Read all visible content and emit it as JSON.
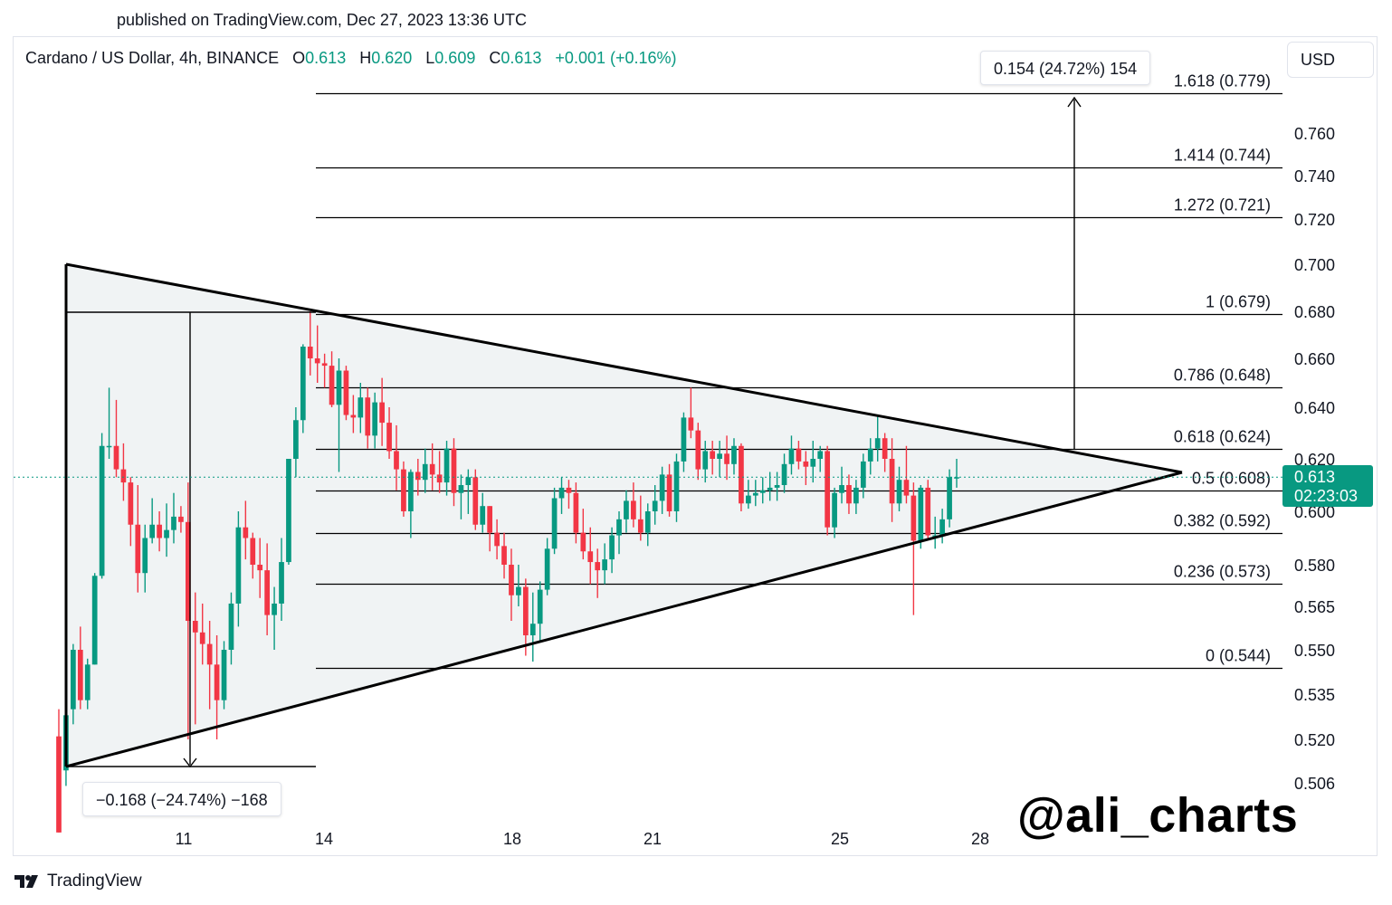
{
  "header": {
    "published": "published on TradingView.com, Dec 27, 2023 13:36 UTC",
    "symbol": "Cardano / US Dollar, 4h, BINANCE",
    "o_label": "O",
    "o_value": "0.613",
    "h_label": "H",
    "h_value": "0.620",
    "l_label": "L",
    "l_value": "0.609",
    "c_label": "C",
    "c_value": "0.613",
    "change": "+0.001 (+0.16%)",
    "currency": "USD"
  },
  "measures": {
    "top": "0.154 (24.72%) 154",
    "bottom": "−0.168 (−24.74%) −168"
  },
  "watermark": "@ali_charts",
  "footer": {
    "brand": "TradingView"
  },
  "price_tag": {
    "price": "0.613",
    "countdown": "02:23:03"
  },
  "colors": {
    "up": "#089981",
    "down": "#f23645",
    "tag": "#089981",
    "line": "#000000",
    "fill": "#f0f3f4"
  },
  "chart_data": {
    "type": "candlestick",
    "x_axis_labels": [
      "11",
      "14",
      "18",
      "21",
      "25",
      "28"
    ],
    "y_axis_labels": [
      "0.760",
      "0.740",
      "0.720",
      "0.700",
      "0.680",
      "0.660",
      "0.640",
      "0.620",
      "0.600",
      "0.580",
      "0.565",
      "0.550",
      "0.535",
      "0.520",
      "0.506"
    ],
    "fib_levels": [
      {
        "ratio": "1.618",
        "price": 0.779,
        "label": "1.618 (0.779)"
      },
      {
        "ratio": "1.414",
        "price": 0.744,
        "label": "1.414 (0.744)"
      },
      {
        "ratio": "1.272",
        "price": 0.721,
        "label": "1.272 (0.721)"
      },
      {
        "ratio": "1",
        "price": 0.679,
        "label": "1 (0.679)"
      },
      {
        "ratio": "0.786",
        "price": 0.648,
        "label": "0.786 (0.648)"
      },
      {
        "ratio": "0.618",
        "price": 0.624,
        "label": "0.618 (0.624)"
      },
      {
        "ratio": "0.5",
        "price": 0.608,
        "label": "0.5 (0.608)"
      },
      {
        "ratio": "0.382",
        "price": 0.592,
        "label": "0.382 (0.592)"
      },
      {
        "ratio": "0.236",
        "price": 0.573,
        "label": "0.236 (0.573)"
      },
      {
        "ratio": "0",
        "price": 0.544,
        "label": "0 (0.544)"
      }
    ],
    "current_price": 0.613,
    "candles": [
      {
        "o": 0.521,
        "h": 0.53,
        "l": 0.49,
        "c": 0.49
      },
      {
        "o": 0.51,
        "h": 0.53,
        "l": 0.505,
        "c": 0.528
      },
      {
        "o": 0.53,
        "h": 0.552,
        "l": 0.525,
        "c": 0.55
      },
      {
        "o": 0.55,
        "h": 0.558,
        "l": 0.53,
        "c": 0.533
      },
      {
        "o": 0.533,
        "h": 0.547,
        "l": 0.53,
        "c": 0.545
      },
      {
        "o": 0.545,
        "h": 0.577,
        "l": 0.545,
        "c": 0.576
      },
      {
        "o": 0.576,
        "h": 0.63,
        "l": 0.575,
        "c": 0.625
      },
      {
        "o": 0.625,
        "h": 0.648,
        "l": 0.62,
        "c": 0.625
      },
      {
        "o": 0.625,
        "h": 0.643,
        "l": 0.613,
        "c": 0.616
      },
      {
        "o": 0.616,
        "h": 0.626,
        "l": 0.604,
        "c": 0.611
      },
      {
        "o": 0.611,
        "h": 0.613,
        "l": 0.587,
        "c": 0.595
      },
      {
        "o": 0.595,
        "h": 0.61,
        "l": 0.57,
        "c": 0.577
      },
      {
        "o": 0.577,
        "h": 0.595,
        "l": 0.57,
        "c": 0.59
      },
      {
        "o": 0.59,
        "h": 0.605,
        "l": 0.588,
        "c": 0.595
      },
      {
        "o": 0.595,
        "h": 0.6,
        "l": 0.585,
        "c": 0.59
      },
      {
        "o": 0.59,
        "h": 0.603,
        "l": 0.583,
        "c": 0.593
      },
      {
        "o": 0.593,
        "h": 0.607,
        "l": 0.588,
        "c": 0.598
      },
      {
        "o": 0.598,
        "h": 0.602,
        "l": 0.592,
        "c": 0.596
      },
      {
        "o": 0.596,
        "h": 0.611,
        "l": 0.52,
        "c": 0.56
      },
      {
        "o": 0.56,
        "h": 0.57,
        "l": 0.525,
        "c": 0.556
      },
      {
        "o": 0.556,
        "h": 0.566,
        "l": 0.545,
        "c": 0.552
      },
      {
        "o": 0.552,
        "h": 0.56,
        "l": 0.53,
        "c": 0.545
      },
      {
        "o": 0.545,
        "h": 0.555,
        "l": 0.52,
        "c": 0.533
      },
      {
        "o": 0.533,
        "h": 0.553,
        "l": 0.53,
        "c": 0.55
      },
      {
        "o": 0.55,
        "h": 0.57,
        "l": 0.545,
        "c": 0.566
      },
      {
        "o": 0.566,
        "h": 0.6,
        "l": 0.558,
        "c": 0.594
      },
      {
        "o": 0.594,
        "h": 0.604,
        "l": 0.582,
        "c": 0.59
      },
      {
        "o": 0.59,
        "h": 0.592,
        "l": 0.575,
        "c": 0.58
      },
      {
        "o": 0.58,
        "h": 0.59,
        "l": 0.568,
        "c": 0.578
      },
      {
        "o": 0.578,
        "h": 0.588,
        "l": 0.555,
        "c": 0.562
      },
      {
        "o": 0.562,
        "h": 0.572,
        "l": 0.55,
        "c": 0.566
      },
      {
        "o": 0.566,
        "h": 0.59,
        "l": 0.56,
        "c": 0.581
      },
      {
        "o": 0.581,
        "h": 0.62,
        "l": 0.58,
        "c": 0.62
      },
      {
        "o": 0.62,
        "h": 0.64,
        "l": 0.613,
        "c": 0.635
      },
      {
        "o": 0.635,
        "h": 0.666,
        "l": 0.63,
        "c": 0.665
      },
      {
        "o": 0.665,
        "h": 0.68,
        "l": 0.653,
        "c": 0.66
      },
      {
        "o": 0.66,
        "h": 0.674,
        "l": 0.65,
        "c": 0.658
      },
      {
        "o": 0.658,
        "h": 0.662,
        "l": 0.648,
        "c": 0.657
      },
      {
        "o": 0.657,
        "h": 0.663,
        "l": 0.64,
        "c": 0.641
      },
      {
        "o": 0.641,
        "h": 0.66,
        "l": 0.615,
        "c": 0.655
      },
      {
        "o": 0.655,
        "h": 0.657,
        "l": 0.635,
        "c": 0.637
      },
      {
        "o": 0.637,
        "h": 0.645,
        "l": 0.63,
        "c": 0.636
      },
      {
        "o": 0.636,
        "h": 0.65,
        "l": 0.63,
        "c": 0.644
      },
      {
        "o": 0.644,
        "h": 0.648,
        "l": 0.624,
        "c": 0.629
      },
      {
        "o": 0.629,
        "h": 0.646,
        "l": 0.624,
        "c": 0.642
      },
      {
        "o": 0.642,
        "h": 0.652,
        "l": 0.625,
        "c": 0.634
      },
      {
        "o": 0.634,
        "h": 0.64,
        "l": 0.62,
        "c": 0.623
      },
      {
        "o": 0.623,
        "h": 0.633,
        "l": 0.608,
        "c": 0.616
      },
      {
        "o": 0.616,
        "h": 0.619,
        "l": 0.598,
        "c": 0.6
      },
      {
        "o": 0.6,
        "h": 0.616,
        "l": 0.59,
        "c": 0.615
      },
      {
        "o": 0.615,
        "h": 0.62,
        "l": 0.606,
        "c": 0.612
      },
      {
        "o": 0.612,
        "h": 0.624,
        "l": 0.607,
        "c": 0.618
      },
      {
        "o": 0.618,
        "h": 0.626,
        "l": 0.608,
        "c": 0.614
      },
      {
        "o": 0.614,
        "h": 0.623,
        "l": 0.607,
        "c": 0.611
      },
      {
        "o": 0.611,
        "h": 0.627,
        "l": 0.606,
        "c": 0.624
      },
      {
        "o": 0.624,
        "h": 0.628,
        "l": 0.602,
        "c": 0.607
      },
      {
        "o": 0.607,
        "h": 0.614,
        "l": 0.597,
        "c": 0.61
      },
      {
        "o": 0.61,
        "h": 0.616,
        "l": 0.599,
        "c": 0.613
      },
      {
        "o": 0.613,
        "h": 0.616,
        "l": 0.593,
        "c": 0.595
      },
      {
        "o": 0.595,
        "h": 0.607,
        "l": 0.592,
        "c": 0.602
      },
      {
        "o": 0.602,
        "h": 0.602,
        "l": 0.585,
        "c": 0.592
      },
      {
        "o": 0.592,
        "h": 0.597,
        "l": 0.582,
        "c": 0.587
      },
      {
        "o": 0.587,
        "h": 0.592,
        "l": 0.575,
        "c": 0.58
      },
      {
        "o": 0.58,
        "h": 0.586,
        "l": 0.56,
        "c": 0.569
      },
      {
        "o": 0.569,
        "h": 0.58,
        "l": 0.565,
        "c": 0.572
      },
      {
        "o": 0.572,
        "h": 0.575,
        "l": 0.548,
        "c": 0.555
      },
      {
        "o": 0.555,
        "h": 0.57,
        "l": 0.546,
        "c": 0.559
      },
      {
        "o": 0.559,
        "h": 0.574,
        "l": 0.553,
        "c": 0.571
      },
      {
        "o": 0.571,
        "h": 0.59,
        "l": 0.569,
        "c": 0.586
      },
      {
        "o": 0.586,
        "h": 0.609,
        "l": 0.584,
        "c": 0.605
      },
      {
        "o": 0.605,
        "h": 0.613,
        "l": 0.599,
        "c": 0.609
      },
      {
        "o": 0.609,
        "h": 0.612,
        "l": 0.601,
        "c": 0.607
      },
      {
        "o": 0.607,
        "h": 0.611,
        "l": 0.588,
        "c": 0.592
      },
      {
        "o": 0.592,
        "h": 0.601,
        "l": 0.582,
        "c": 0.585
      },
      {
        "o": 0.585,
        "h": 0.594,
        "l": 0.573,
        "c": 0.581
      },
      {
        "o": 0.581,
        "h": 0.586,
        "l": 0.568,
        "c": 0.578
      },
      {
        "o": 0.578,
        "h": 0.588,
        "l": 0.573,
        "c": 0.582
      },
      {
        "o": 0.582,
        "h": 0.594,
        "l": 0.577,
        "c": 0.591
      },
      {
        "o": 0.591,
        "h": 0.6,
        "l": 0.584,
        "c": 0.597
      },
      {
        "o": 0.597,
        "h": 0.608,
        "l": 0.592,
        "c": 0.604
      },
      {
        "o": 0.604,
        "h": 0.611,
        "l": 0.594,
        "c": 0.597
      },
      {
        "o": 0.597,
        "h": 0.606,
        "l": 0.589,
        "c": 0.592
      },
      {
        "o": 0.592,
        "h": 0.603,
        "l": 0.587,
        "c": 0.6
      },
      {
        "o": 0.6,
        "h": 0.61,
        "l": 0.595,
        "c": 0.604
      },
      {
        "o": 0.604,
        "h": 0.617,
        "l": 0.599,
        "c": 0.614
      },
      {
        "o": 0.614,
        "h": 0.618,
        "l": 0.598,
        "c": 0.6
      },
      {
        "o": 0.6,
        "h": 0.622,
        "l": 0.596,
        "c": 0.619
      },
      {
        "o": 0.619,
        "h": 0.638,
        "l": 0.615,
        "c": 0.636
      },
      {
        "o": 0.636,
        "h": 0.648,
        "l": 0.628,
        "c": 0.631
      },
      {
        "o": 0.631,
        "h": 0.634,
        "l": 0.612,
        "c": 0.616
      },
      {
        "o": 0.616,
        "h": 0.627,
        "l": 0.611,
        "c": 0.623
      },
      {
        "o": 0.623,
        "h": 0.627,
        "l": 0.614,
        "c": 0.62
      },
      {
        "o": 0.62,
        "h": 0.627,
        "l": 0.613,
        "c": 0.622
      },
      {
        "o": 0.622,
        "h": 0.629,
        "l": 0.612,
        "c": 0.618
      },
      {
        "o": 0.618,
        "h": 0.628,
        "l": 0.614,
        "c": 0.625
      },
      {
        "o": 0.625,
        "h": 0.626,
        "l": 0.6,
        "c": 0.603
      },
      {
        "o": 0.603,
        "h": 0.612,
        "l": 0.601,
        "c": 0.606
      },
      {
        "o": 0.606,
        "h": 0.612,
        "l": 0.602,
        "c": 0.607
      },
      {
        "o": 0.607,
        "h": 0.613,
        "l": 0.603,
        "c": 0.608
      },
      {
        "o": 0.608,
        "h": 0.615,
        "l": 0.604,
        "c": 0.609
      },
      {
        "o": 0.609,
        "h": 0.615,
        "l": 0.604,
        "c": 0.61
      },
      {
        "o": 0.61,
        "h": 0.622,
        "l": 0.607,
        "c": 0.618
      },
      {
        "o": 0.618,
        "h": 0.629,
        "l": 0.614,
        "c": 0.624
      },
      {
        "o": 0.624,
        "h": 0.627,
        "l": 0.616,
        "c": 0.619
      },
      {
        "o": 0.619,
        "h": 0.623,
        "l": 0.61,
        "c": 0.617
      },
      {
        "o": 0.617,
        "h": 0.627,
        "l": 0.611,
        "c": 0.62
      },
      {
        "o": 0.62,
        "h": 0.625,
        "l": 0.615,
        "c": 0.623
      },
      {
        "o": 0.623,
        "h": 0.625,
        "l": 0.591,
        "c": 0.594
      },
      {
        "o": 0.594,
        "h": 0.609,
        "l": 0.59,
        "c": 0.607
      },
      {
        "o": 0.607,
        "h": 0.617,
        "l": 0.603,
        "c": 0.61
      },
      {
        "o": 0.61,
        "h": 0.614,
        "l": 0.599,
        "c": 0.603
      },
      {
        "o": 0.603,
        "h": 0.612,
        "l": 0.599,
        "c": 0.609
      },
      {
        "o": 0.609,
        "h": 0.622,
        "l": 0.605,
        "c": 0.619
      },
      {
        "o": 0.619,
        "h": 0.628,
        "l": 0.614,
        "c": 0.624
      },
      {
        "o": 0.624,
        "h": 0.637,
        "l": 0.619,
        "c": 0.628
      },
      {
        "o": 0.628,
        "h": 0.63,
        "l": 0.615,
        "c": 0.62
      },
      {
        "o": 0.62,
        "h": 0.628,
        "l": 0.596,
        "c": 0.603
      },
      {
        "o": 0.603,
        "h": 0.617,
        "l": 0.6,
        "c": 0.612
      },
      {
        "o": 0.612,
        "h": 0.625,
        "l": 0.603,
        "c": 0.606
      },
      {
        "o": 0.606,
        "h": 0.611,
        "l": 0.562,
        "c": 0.589
      },
      {
        "o": 0.589,
        "h": 0.61,
        "l": 0.586,
        "c": 0.609
      },
      {
        "o": 0.609,
        "h": 0.612,
        "l": 0.59,
        "c": 0.591
      },
      {
        "o": 0.591,
        "h": 0.598,
        "l": 0.586,
        "c": 0.591
      },
      {
        "o": 0.591,
        "h": 0.601,
        "l": 0.588,
        "c": 0.597
      },
      {
        "o": 0.597,
        "h": 0.616,
        "l": 0.594,
        "c": 0.613
      },
      {
        "o": 0.613,
        "h": 0.62,
        "l": 0.609,
        "c": 0.613
      }
    ]
  }
}
